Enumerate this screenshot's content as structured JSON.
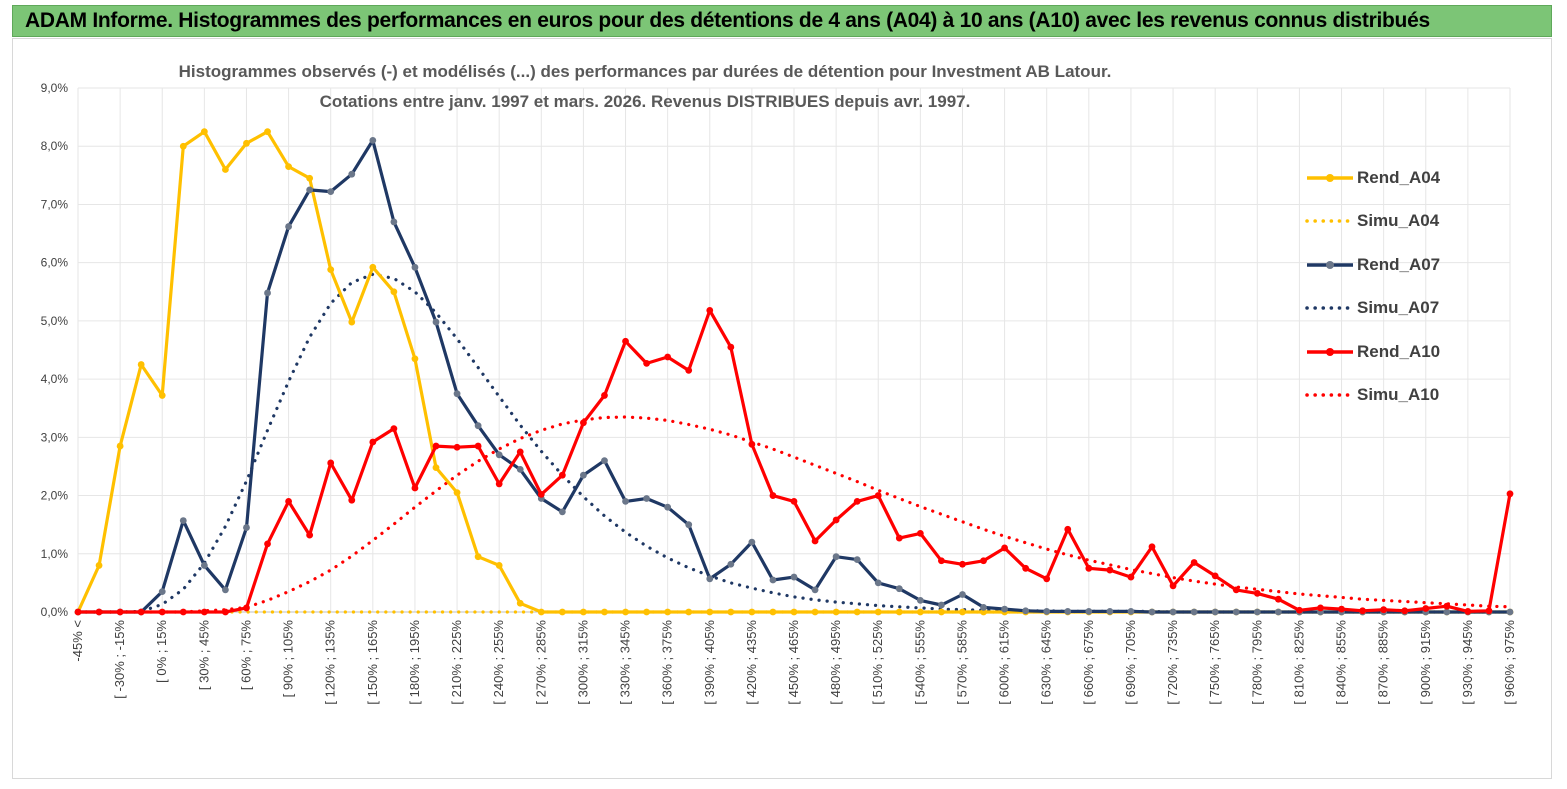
{
  "header": {
    "title": "ADAM Informe. Histogrammes des performances en euros pour des détentions de 4 ans (A04) à 10 ans (A10) avec les revenus connus distribués"
  },
  "chart_data": {
    "type": "line",
    "title_line1": "Histogrammes observés (-) et modélisés (...) des performances par durées de détention pour Investment AB Latour.",
    "title_line2": "Cotations entre janv. 1997 et mars. 2026. Revenus DISTRIBUES depuis avr. 1997.",
    "ylim": [
      0,
      9
    ],
    "yticks": [
      "0,0%",
      "1,0%",
      "2,0%",
      "3,0%",
      "4,0%",
      "5,0%",
      "6,0%",
      "7,0%",
      "8,0%",
      "9,0%"
    ],
    "xtick_labels": [
      "-45% <",
      "[ -30% ; -15%",
      "[ 0% ; 15%",
      "[ 30% ; 45%",
      "[ 60% ; 75%",
      "[ 90% ; 105%",
      "[ 120% ; 135%",
      "[ 150% ; 165%",
      "[ 180% ; 195%",
      "[ 210% ; 225%",
      "[ 240% ; 255%",
      "[ 270% ; 285%",
      "[ 300% ; 315%",
      "[ 330% ; 345%",
      "[ 360% ; 375%",
      "[ 390% ; 405%",
      "[ 420% ; 435%",
      "[ 450% ; 465%",
      "[ 480% ; 495%",
      "[ 510% ; 525%",
      "[ 540% ; 555%",
      "[ 570% ; 585%",
      "[ 600% ; 615%",
      "[ 630% ; 645%",
      "[ 660% ; 675%",
      "[ 690% ; 705%",
      "[ 720% ; 735%",
      "[ 750% ; 765%",
      "[ 780% ; 795%",
      "[ 810% ; 825%",
      "[ 840% ; 855%",
      "[ 870% ; 885%",
      "[ 900% ; 915%",
      "[ 930% ; 945%",
      "[ 960% ; 975%"
    ],
    "n_categories": 69,
    "series": [
      {
        "name": "Rend_A04",
        "style": "solid",
        "color": "#ffc000",
        "values": [
          0,
          0.8,
          2.85,
          4.25,
          3.72,
          8.0,
          8.25,
          7.6,
          8.05,
          8.25,
          7.65,
          7.45,
          5.88,
          4.98,
          5.92,
          5.5,
          4.35,
          2.48,
          2.05,
          0.95,
          0.8,
          0.15,
          0,
          0,
          0,
          0,
          0,
          0,
          0,
          0,
          0,
          0,
          0,
          0,
          0,
          0,
          0,
          0,
          0,
          0,
          0,
          0,
          0,
          0,
          0,
          0,
          0,
          0,
          0,
          0,
          0,
          0,
          0,
          0,
          0,
          0,
          0,
          0,
          0,
          0,
          0,
          0,
          0,
          0,
          0,
          0,
          0,
          0,
          0
        ]
      },
      {
        "name": "Simu_A04",
        "style": "dotted",
        "color": "#ffc000",
        "values": [
          0,
          0,
          0,
          0,
          0,
          0,
          0,
          0,
          0,
          0,
          0,
          0,
          0,
          0,
          0,
          0,
          0,
          0,
          0,
          0,
          0,
          0,
          0,
          0,
          0,
          0,
          0,
          0,
          0,
          0,
          0,
          0,
          0,
          0,
          0,
          0,
          0,
          0,
          0,
          0,
          0,
          0,
          0,
          0,
          0,
          0,
          0,
          0,
          0,
          0,
          0,
          0,
          0,
          0,
          0,
          0,
          0,
          0,
          0,
          0,
          0,
          0,
          0,
          0,
          0,
          0,
          0,
          0,
          0
        ]
      },
      {
        "name": "Rend_A07",
        "style": "solid",
        "color": "#1f3864",
        "values": [
          0,
          0,
          0,
          0,
          0.35,
          1.57,
          0.8,
          0.38,
          1.45,
          5.48,
          6.62,
          7.25,
          7.22,
          7.52,
          8.1,
          6.7,
          5.92,
          4.98,
          3.75,
          3.2,
          2.7,
          2.45,
          1.95,
          1.72,
          2.35,
          2.6,
          1.9,
          1.95,
          1.8,
          1.5,
          0.57,
          0.82,
          1.2,
          0.55,
          0.6,
          0.38,
          0.95,
          0.9,
          0.5,
          0.4,
          0.2,
          0.12,
          0.3,
          0.08,
          0.05,
          0.02,
          0.01,
          0.01,
          0.01,
          0.01,
          0.01,
          0,
          0,
          0,
          0,
          0,
          0,
          0,
          0,
          0,
          0,
          0,
          0,
          0,
          0,
          0,
          0,
          0,
          0
        ]
      },
      {
        "name": "Simu_A07",
        "style": "dotted",
        "color": "#1f3864",
        "values": [
          0,
          0,
          0,
          0.01,
          0.13,
          0.39,
          0.84,
          1.47,
          2.25,
          3.12,
          3.96,
          4.72,
          5.3,
          5.66,
          5.8,
          5.73,
          5.5,
          5.14,
          4.69,
          4.2,
          3.7,
          3.21,
          2.76,
          2.35,
          1.98,
          1.65,
          1.37,
          1.13,
          0.93,
          0.76,
          0.62,
          0.5,
          0.41,
          0.33,
          0.26,
          0.21,
          0.17,
          0.14,
          0.11,
          0.09,
          0.07,
          0.05,
          0.04,
          0.03,
          0.03,
          0.02,
          0.02,
          0.01,
          0.01,
          0.01,
          0.01,
          0.01,
          0,
          0,
          0,
          0,
          0,
          0,
          0,
          0,
          0,
          0,
          0,
          0,
          0,
          0,
          0,
          0,
          0
        ]
      },
      {
        "name": "Rend_A10",
        "style": "solid",
        "color": "#ff0000",
        "values": [
          0,
          0,
          0,
          0,
          0,
          0,
          0,
          0,
          0.07,
          1.17,
          1.9,
          1.32,
          2.56,
          1.92,
          2.92,
          3.15,
          2.13,
          2.85,
          2.83,
          2.85,
          2.2,
          2.75,
          2.02,
          2.35,
          3.25,
          3.72,
          4.65,
          4.27,
          4.38,
          4.15,
          5.18,
          4.55,
          2.88,
          2.0,
          1.9,
          1.22,
          1.58,
          1.9,
          2.0,
          1.27,
          1.35,
          0.88,
          0.82,
          0.88,
          1.1,
          0.75,
          0.57,
          1.42,
          0.75,
          0.72,
          0.6,
          1.12,
          0.45,
          0.85,
          0.62,
          0.38,
          0.32,
          0.22,
          0.03,
          0.07,
          0.05,
          0.02,
          0.04,
          0.02,
          0.06,
          0.1,
          0.01,
          0.02,
          2.03
        ]
      },
      {
        "name": "Simu_A10",
        "style": "dotted",
        "color": "#ff0000",
        "values": [
          0,
          0,
          0,
          0,
          0,
          0,
          0.02,
          0.04,
          0.08,
          0.2,
          0.35,
          0.52,
          0.72,
          0.96,
          1.23,
          1.51,
          1.8,
          2.08,
          2.35,
          2.59,
          2.8,
          2.98,
          3.12,
          3.23,
          3.3,
          3.34,
          3.35,
          3.33,
          3.29,
          3.22,
          3.14,
          3.04,
          2.92,
          2.8,
          2.66,
          2.52,
          2.38,
          2.24,
          2.09,
          1.95,
          1.81,
          1.68,
          1.55,
          1.42,
          1.3,
          1.19,
          1.08,
          0.98,
          0.89,
          0.81,
          0.73,
          0.66,
          0.59,
          0.53,
          0.48,
          0.43,
          0.39,
          0.35,
          0.31,
          0.28,
          0.25,
          0.22,
          0.2,
          0.18,
          0.16,
          0.14,
          0.12,
          0.1,
          0.09
        ]
      }
    ]
  }
}
